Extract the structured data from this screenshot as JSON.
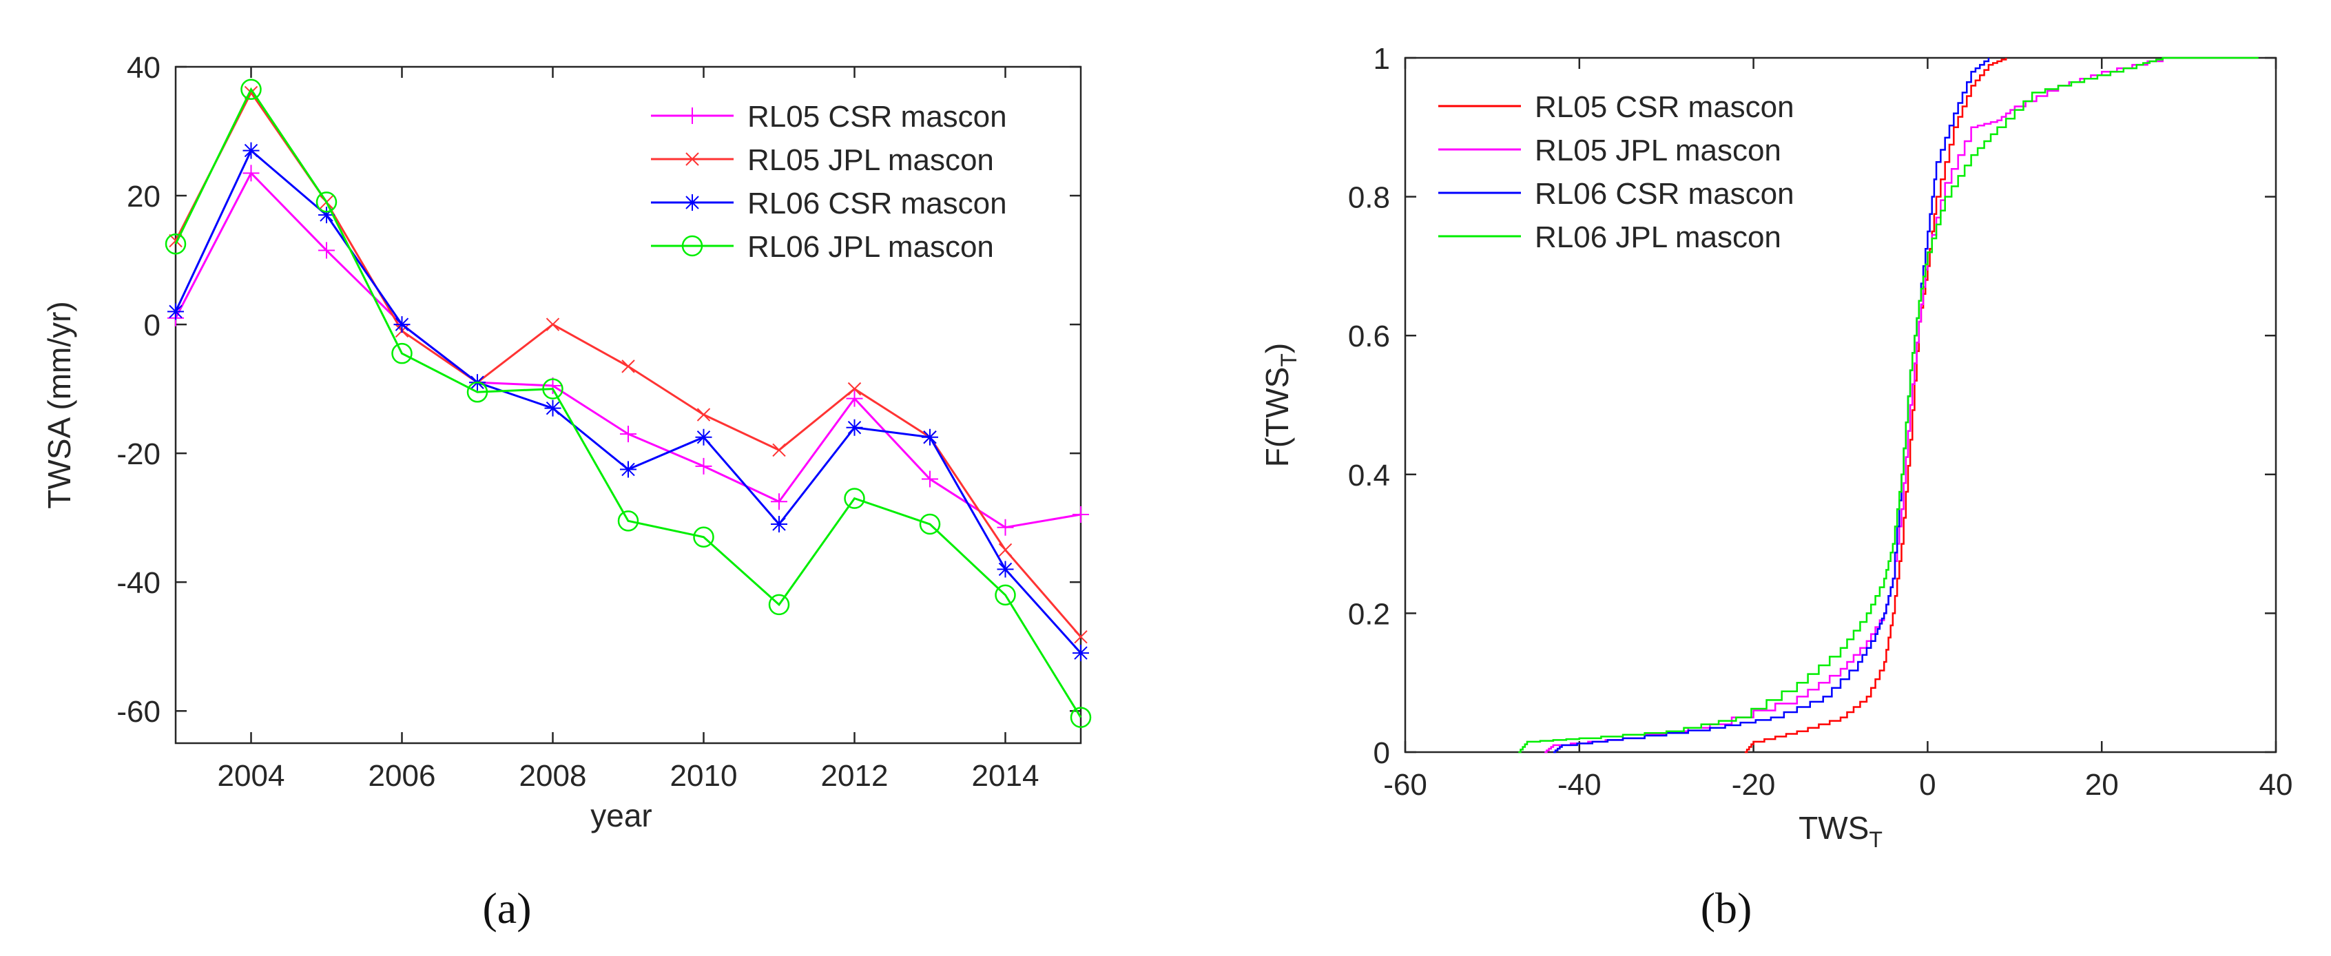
{
  "captions": {
    "a": "(a)",
    "b": "(b)"
  },
  "chart_data": [
    {
      "id": "a",
      "type": "line",
      "title": "",
      "xlabel": "year",
      "ylabel": "TWSA (mm/yr)",
      "xlim": [
        2003,
        2015
      ],
      "ylim": [
        -65,
        40
      ],
      "xticks": [
        2004,
        2006,
        2008,
        2010,
        2012,
        2014
      ],
      "yticks": [
        -60,
        -40,
        -20,
        0,
        20,
        40
      ],
      "x": [
        2003,
        2004,
        2005,
        2006,
        2007,
        2008,
        2009,
        2010,
        2011,
        2012,
        2013,
        2014,
        2015
      ],
      "legend_position": "top-right",
      "series": [
        {
          "name": "RL05 CSR mascon",
          "color": "#ff00ff",
          "marker": "plus",
          "values": [
            1,
            23.5,
            11.5,
            0,
            -9,
            -9.5,
            -17,
            -22,
            -27.5,
            -11.5,
            -24,
            -31.5,
            -29.5
          ]
        },
        {
          "name": "RL05 JPL mascon",
          "color": "#ff3333",
          "marker": "x",
          "values": [
            13,
            36,
            19,
            -1,
            -9,
            0,
            -6.5,
            -14,
            -19.5,
            -10,
            -17.5,
            -35,
            -48.5
          ]
        },
        {
          "name": "RL06 CSR mascon",
          "color": "#0000ff",
          "marker": "star",
          "values": [
            2,
            27,
            17,
            0,
            -9,
            -13,
            -22.5,
            -17.5,
            -31,
            -16,
            -17.5,
            -38,
            -51
          ]
        },
        {
          "name": "RL06 JPL  mascon",
          "color": "#00ee00",
          "marker": "circle",
          "values": [
            12.5,
            36.5,
            19,
            -4.5,
            -10.5,
            -10,
            -30.5,
            -33,
            -43.5,
            -27,
            -31,
            -42,
            -61
          ]
        }
      ]
    },
    {
      "id": "b",
      "type": "line",
      "title": "",
      "xlabel": "TWS",
      "xlabel_sub": "T",
      "ylabel": "F(TWS",
      "ylabel_sub": "T",
      "ylabel_close": ")",
      "xlim": [
        -60,
        40
      ],
      "ylim": [
        0,
        1
      ],
      "xticks": [
        -60,
        -40,
        -20,
        0,
        20,
        40
      ],
      "yticks": [
        0,
        0.2,
        0.4,
        0.6,
        0.8,
        1
      ],
      "legend_position": "top-left",
      "series": [
        {
          "name": "RL05 CSR mascon",
          "color": "#ff0000",
          "points": [
            [
              -21,
              0
            ],
            [
              -20,
              0.015
            ],
            [
              -15,
              0.03
            ],
            [
              -10,
              0.05
            ],
            [
              -7,
              0.08
            ],
            [
              -5,
              0.13
            ],
            [
              -4,
              0.2
            ],
            [
              -3,
              0.3
            ],
            [
              -2,
              0.45
            ],
            [
              -1,
              0.62
            ],
            [
              0,
              0.7
            ],
            [
              1,
              0.8
            ],
            [
              3,
              0.9
            ],
            [
              5,
              0.96
            ],
            [
              7,
              0.99
            ],
            [
              9,
              1
            ]
          ]
        },
        {
          "name": "RL05 JPL mascon",
          "color": "#ff00ff",
          "points": [
            [
              -44,
              0
            ],
            [
              -43,
              0.01
            ],
            [
              -35,
              0.02
            ],
            [
              -25,
              0.04
            ],
            [
              -15,
              0.08
            ],
            [
              -10,
              0.12
            ],
            [
              -7,
              0.16
            ],
            [
              -5,
              0.2
            ],
            [
              -4,
              0.25
            ],
            [
              -3,
              0.35
            ],
            [
              -2,
              0.5
            ],
            [
              -1,
              0.62
            ],
            [
              0,
              0.72
            ],
            [
              2,
              0.82
            ],
            [
              5,
              0.9
            ],
            [
              8,
              0.91
            ],
            [
              10,
              0.93
            ],
            [
              15,
              0.96
            ],
            [
              20,
              0.98
            ],
            [
              27,
              1
            ]
          ]
        },
        {
          "name": "RL06 CSR mascon",
          "color": "#0000ff",
          "points": [
            [
              -43,
              0
            ],
            [
              -42,
              0.01
            ],
            [
              -35,
              0.02
            ],
            [
              -25,
              0.035
            ],
            [
              -18,
              0.05
            ],
            [
              -12,
              0.08
            ],
            [
              -8,
              0.13
            ],
            [
              -6,
              0.17
            ],
            [
              -5,
              0.2
            ],
            [
              -4,
              0.25
            ],
            [
              -3,
              0.4
            ],
            [
              -2,
              0.55
            ],
            [
              -1,
              0.65
            ],
            [
              0,
              0.75
            ],
            [
              1,
              0.85
            ],
            [
              3,
              0.92
            ],
            [
              5,
              0.98
            ],
            [
              7,
              1
            ]
          ]
        },
        {
          "name": "RL06 JPL mascon",
          "color": "#00ee00",
          "points": [
            [
              -47,
              0
            ],
            [
              -46,
              0.015
            ],
            [
              -40,
              0.02
            ],
            [
              -30,
              0.03
            ],
            [
              -22,
              0.05
            ],
            [
              -15,
              0.1
            ],
            [
              -10,
              0.15
            ],
            [
              -7,
              0.2
            ],
            [
              -5,
              0.25
            ],
            [
              -4,
              0.3
            ],
            [
              -3,
              0.4
            ],
            [
              -2,
              0.55
            ],
            [
              -1,
              0.65
            ],
            [
              0,
              0.72
            ],
            [
              2,
              0.8
            ],
            [
              5,
              0.86
            ],
            [
              8,
              0.9
            ],
            [
              12,
              0.95
            ],
            [
              18,
              0.97
            ],
            [
              24,
              0.99
            ],
            [
              27,
              1
            ],
            [
              38,
              1
            ]
          ]
        }
      ]
    }
  ]
}
